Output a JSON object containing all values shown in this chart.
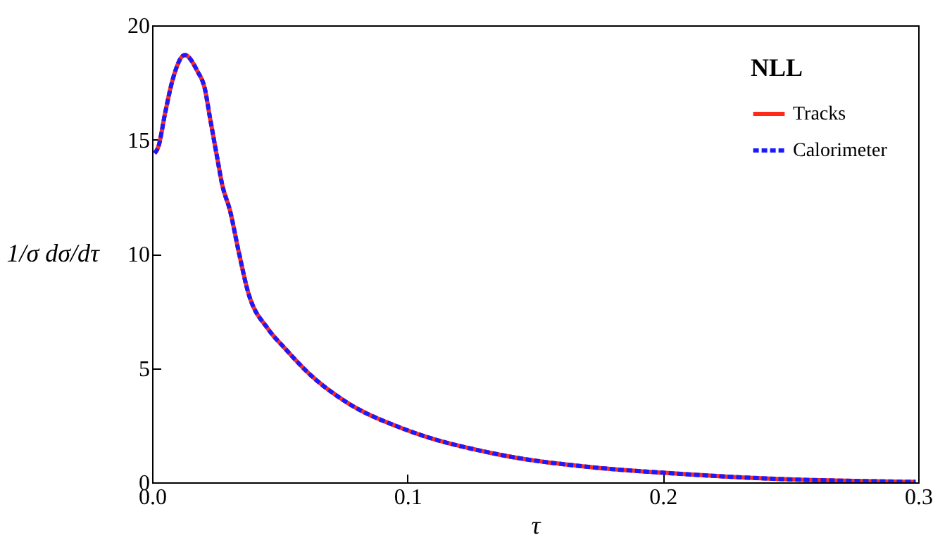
{
  "chart_data": {
    "type": "line",
    "xlabel": "τ",
    "ylabel": "1/σ dσ/dτ",
    "legend_title": "NLL",
    "legend": "top right",
    "x": [
      0.001,
      0.0025,
      0.005,
      0.008,
      0.0128,
      0.0177,
      0.0207,
      0.0226,
      0.0255,
      0.0275,
      0.0305,
      0.0339,
      0.0374,
      0.0455,
      0.0517,
      0.062,
      0.0762,
      0.0987,
      0.1334,
      0.174,
      0.2,
      0.24,
      0.299
    ],
    "series": [
      {
        "name": "Tracks",
        "color": "#ff2a1a",
        "line_style": "solid",
        "values": [
          14.4,
          14.7,
          16.1,
          17.6,
          18.7,
          18.0,
          17.2,
          16.0,
          14.2,
          13.0,
          11.9,
          10.1,
          8.4,
          6.7,
          5.9,
          4.7,
          3.5,
          2.33,
          1.27,
          0.64,
          0.42,
          0.17,
          0.02
        ]
      },
      {
        "name": "Calorimeter",
        "color": "#1a1aff",
        "line_style": "dashed",
        "values": [
          14.4,
          14.7,
          16.1,
          17.6,
          18.7,
          18.0,
          17.2,
          16.0,
          14.2,
          13.0,
          11.9,
          10.1,
          8.4,
          6.7,
          5.9,
          4.7,
          3.5,
          2.33,
          1.27,
          0.64,
          0.42,
          0.17,
          0.02
        ]
      }
    ],
    "xlim": [
      0,
      0.3
    ],
    "xticks": [
      {
        "value": 0,
        "label": "0.0"
      },
      0.1,
      0.2,
      0.3
    ],
    "ylim": [
      0,
      20
    ],
    "yticks": [
      0,
      5,
      10,
      15,
      20
    ],
    "grid": false
  }
}
